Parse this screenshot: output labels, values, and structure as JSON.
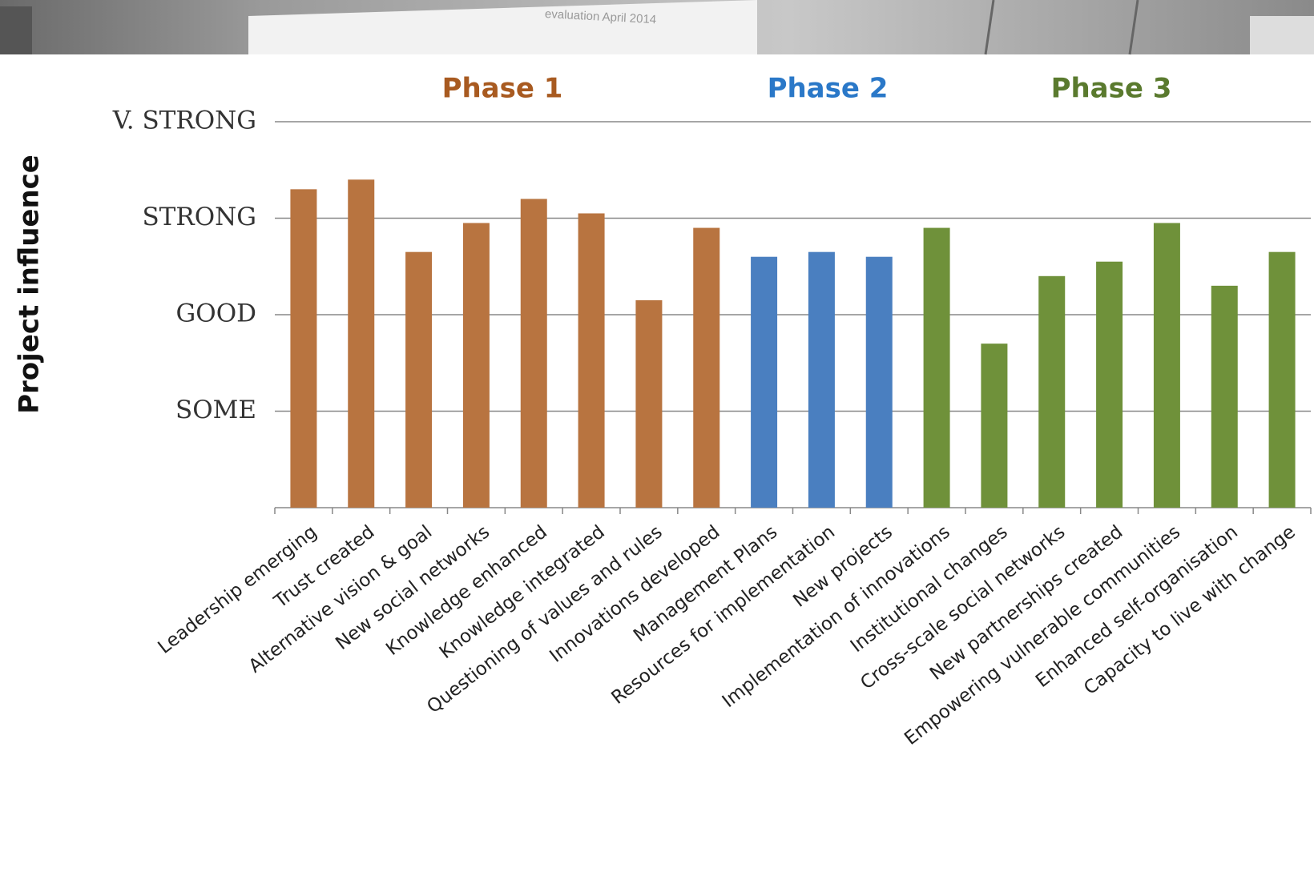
{
  "photo_caption": "evaluation April 2014",
  "chart_data": {
    "type": "bar",
    "ylabel": "Project influence",
    "categories": [
      "Leadership emerging",
      "Trust created",
      "Alternative vision & goal",
      "New social networks",
      "Knowledge enhanced",
      "Knowledge integrated",
      "Questioning of values and rules",
      "Innovations developed",
      "Management Plans",
      "Resources for implementation",
      "New projects",
      "Implementation of innovations",
      "Institutional changes",
      "Cross-scale social networks",
      "New partnerships created",
      "Empowering vulnerable communities",
      "Enhanced self-organisation",
      "Capacity to live with change"
    ],
    "values": [
      3.3,
      3.4,
      2.65,
      2.95,
      3.2,
      3.05,
      2.15,
      2.9,
      2.6,
      2.65,
      2.6,
      2.9,
      1.7,
      2.4,
      2.55,
      2.95,
      2.3,
      2.65
    ],
    "colors": [
      "#b87440",
      "#b87440",
      "#b87440",
      "#b87440",
      "#b87440",
      "#b87440",
      "#b87440",
      "#b87440",
      "#4a7fc0",
      "#4a7fc0",
      "#4a7fc0",
      "#6f913a",
      "#6f913a",
      "#6f913a",
      "#6f913a",
      "#6f913a",
      "#6f913a",
      "#6f913a"
    ],
    "phases": [
      {
        "label": "Phase 1",
        "color": "#a85a20"
      },
      {
        "label": "Phase 2",
        "color": "#2a78c8"
      },
      {
        "label": "Phase 3",
        "color": "#5a7a2e"
      }
    ],
    "ylim": [
      0,
      4
    ],
    "yticks": [
      {
        "value": 1,
        "label": "SOME"
      },
      {
        "value": 2,
        "label": "GOOD"
      },
      {
        "value": 3,
        "label": "STRONG"
      },
      {
        "value": 4,
        "label": "V. STRONG"
      }
    ],
    "grid": true
  }
}
